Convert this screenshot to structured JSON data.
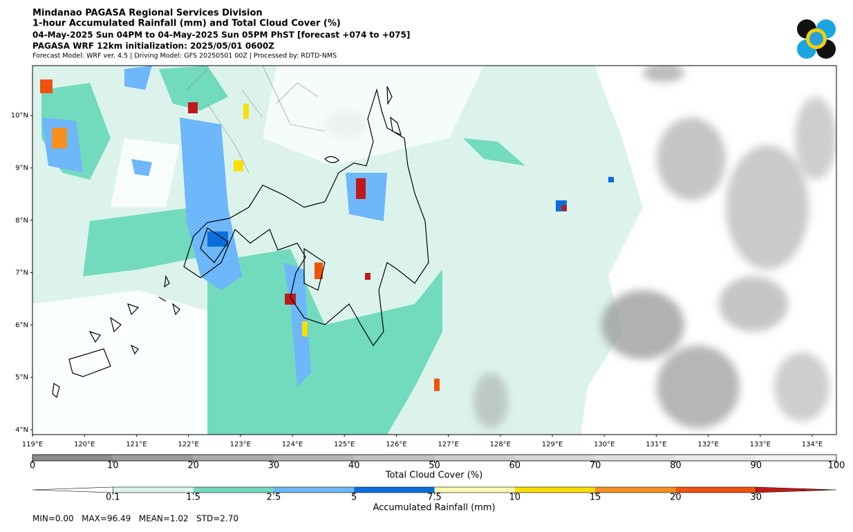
{
  "header": {
    "title": "Mindanao PAGASA Regional Services Division",
    "subtitle": "1-hour Accumulated Rainfall (mm) and Total Cloud Cover (%)",
    "valid_time": "04-May-2025 Sun 04PM to 04-May-2025 Sun 05PM PhST [forecast +074 to +075]",
    "initialization": "PAGASA WRF 12km initialization: 2025/05/01 0600Z",
    "models": "Forecast Model: WRF ver. 4.5 | Driving Model: GFS 20250501 00Z | Processed by: RDTD-NMS"
  },
  "map": {
    "lat_labels": [
      "4°N",
      "5°N",
      "6°N",
      "7°N",
      "8°N",
      "9°N",
      "10°N"
    ],
    "lon_labels": [
      "119°E",
      "120°E",
      "121°E",
      "122°E",
      "123°E",
      "124°E",
      "125°E",
      "126°E",
      "127°E",
      "128°E",
      "129°E",
      "130°E",
      "131°E",
      "132°E",
      "133°E",
      "134°E"
    ]
  },
  "cloud_colorbar": {
    "label": "Total Cloud Cover (%)",
    "ticks": [
      0,
      10,
      20,
      30,
      40,
      50,
      60,
      70,
      80,
      90,
      100
    ],
    "colors": [
      "#8c8c8c",
      "#9c9c9c",
      "#aaaaaa",
      "#b6b6b6",
      "#c2c2c2",
      "#cdcdcd",
      "#d7d7d7",
      "#e0e0e0",
      "#e9e9e9",
      "#f2f2f2"
    ]
  },
  "rain_colorbar": {
    "label": "Accumulated Rainfall (mm)",
    "ticks": [
      0.1,
      1.5,
      2.5,
      5,
      7.5,
      10,
      15,
      20,
      30
    ],
    "colors": [
      "#ffffff",
      "#dcf5ec",
      "#72dbbd",
      "#6db7fa",
      "#0a6fdc",
      "#fffab4",
      "#f8df00",
      "#f7901e",
      "#f0520e",
      "#bf1a1a"
    ]
  },
  "stats": "MIN=0.00   MAX=96.49   MEAN=1.02   STD=2.70"
}
